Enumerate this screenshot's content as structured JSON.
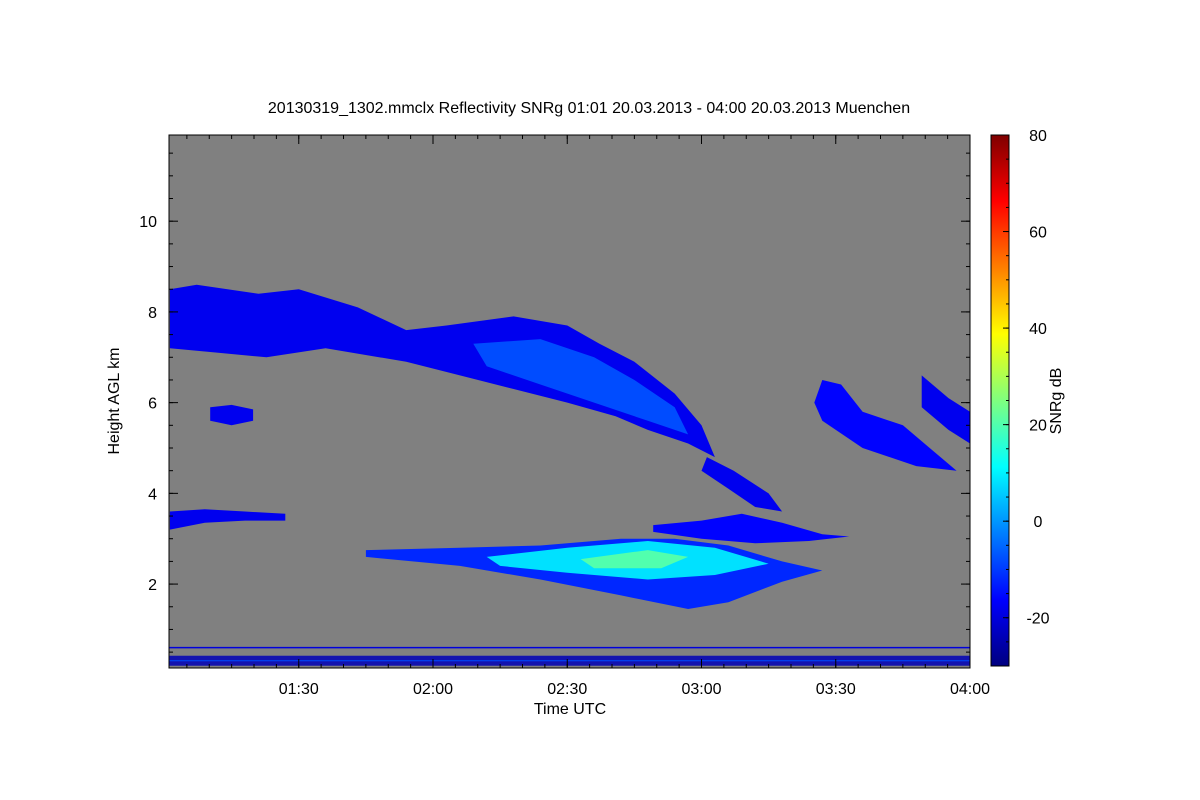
{
  "chart_data": {
    "type": "heatmap",
    "title": "20130319_1302.mmclx Reflectivity SNRg   01:01 20.03.2013 - 04:00 20.03.2013 Muenchen",
    "xlabel": "Time UTC",
    "ylabel": "Height AGL km",
    "colorbar_label": "SNRg dB",
    "x_range_hours": [
      1.0167,
      4.0
    ],
    "y_range_km": [
      0.15,
      11.9
    ],
    "x_ticks": [
      {
        "value": 1.5,
        "label": "01:30"
      },
      {
        "value": 2.0,
        "label": "02:00"
      },
      {
        "value": 2.5,
        "label": "02:30"
      },
      {
        "value": 3.0,
        "label": "03:00"
      },
      {
        "value": 3.5,
        "label": "03:30"
      },
      {
        "value": 4.0,
        "label": "04:00"
      }
    ],
    "y_ticks": [
      {
        "value": 2,
        "label": "2"
      },
      {
        "value": 4,
        "label": "4"
      },
      {
        "value": 6,
        "label": "6"
      },
      {
        "value": 8,
        "label": "8"
      },
      {
        "value": 10,
        "label": "10"
      }
    ],
    "colorbar_range": [
      -30,
      80
    ],
    "colorbar_ticks": [
      {
        "value": -20,
        "label": "-20"
      },
      {
        "value": 0,
        "label": "0"
      },
      {
        "value": 20,
        "label": "20"
      },
      {
        "value": 40,
        "label": "40"
      },
      {
        "value": 60,
        "label": "60"
      },
      {
        "value": 80,
        "label": "80"
      }
    ],
    "background_color": "#808080",
    "colormap": [
      "#00007f",
      "#0000ff",
      "#007fff",
      "#00ffff",
      "#7fff7f",
      "#ffff00",
      "#ff7f00",
      "#ff0000",
      "#7f0000"
    ],
    "echo_regions": [
      {
        "name": "upper-cirrus-band",
        "snr_db": -18,
        "points": [
          [
            1.02,
            8.5
          ],
          [
            1.12,
            8.6
          ],
          [
            1.35,
            8.4
          ],
          [
            1.5,
            8.5
          ],
          [
            1.72,
            8.1
          ],
          [
            1.9,
            7.6
          ],
          [
            2.05,
            7.7
          ],
          [
            2.3,
            7.9
          ],
          [
            2.5,
            7.7
          ],
          [
            2.62,
            7.3
          ],
          [
            2.75,
            6.9
          ],
          [
            2.9,
            6.2
          ],
          [
            3.0,
            5.5
          ],
          [
            3.05,
            4.8
          ],
          [
            2.95,
            5.1
          ],
          [
            2.8,
            5.4
          ],
          [
            2.68,
            5.7
          ],
          [
            2.5,
            6.0
          ],
          [
            2.3,
            6.3
          ],
          [
            2.1,
            6.6
          ],
          [
            1.9,
            6.9
          ],
          [
            1.6,
            7.2
          ],
          [
            1.38,
            7.0
          ],
          [
            1.2,
            7.1
          ],
          [
            1.02,
            7.2
          ]
        ]
      },
      {
        "name": "upper-cirrus-core",
        "snr_db": -8,
        "points": [
          [
            2.15,
            7.3
          ],
          [
            2.4,
            7.4
          ],
          [
            2.6,
            7.0
          ],
          [
            2.75,
            6.5
          ],
          [
            2.9,
            5.9
          ],
          [
            2.95,
            5.3
          ],
          [
            2.8,
            5.6
          ],
          [
            2.6,
            6.0
          ],
          [
            2.4,
            6.4
          ],
          [
            2.2,
            6.8
          ]
        ]
      },
      {
        "name": "small-cloud-5.8km",
        "snr_db": -18,
        "points": [
          [
            1.17,
            5.9
          ],
          [
            1.25,
            5.95
          ],
          [
            1.33,
            5.85
          ],
          [
            1.33,
            5.6
          ],
          [
            1.25,
            5.5
          ],
          [
            1.17,
            5.6
          ]
        ]
      },
      {
        "name": "band-3.5km",
        "snr_db": -18,
        "points": [
          [
            1.02,
            3.6
          ],
          [
            1.15,
            3.65
          ],
          [
            1.3,
            3.6
          ],
          [
            1.45,
            3.55
          ],
          [
            1.45,
            3.4
          ],
          [
            1.3,
            3.4
          ],
          [
            1.15,
            3.35
          ],
          [
            1.02,
            3.2
          ]
        ]
      },
      {
        "name": "mid-level-layer-3km",
        "snr_db": -16,
        "points": [
          [
            2.82,
            3.3
          ],
          [
            3.0,
            3.4
          ],
          [
            3.15,
            3.55
          ],
          [
            3.3,
            3.35
          ],
          [
            3.45,
            3.1
          ],
          [
            3.55,
            3.05
          ],
          [
            3.4,
            2.95
          ],
          [
            3.2,
            2.9
          ],
          [
            3.0,
            3.0
          ],
          [
            2.82,
            3.15
          ]
        ]
      },
      {
        "name": "descending-link",
        "snr_db": -18,
        "points": [
          [
            3.02,
            4.8
          ],
          [
            3.12,
            4.5
          ],
          [
            3.25,
            4.0
          ],
          [
            3.3,
            3.6
          ],
          [
            3.2,
            3.7
          ],
          [
            3.1,
            4.1
          ],
          [
            3.0,
            4.5
          ]
        ]
      },
      {
        "name": "cloud-3.5h",
        "snr_db": -16,
        "points": [
          [
            3.45,
            6.5
          ],
          [
            3.52,
            6.4
          ],
          [
            3.6,
            5.8
          ],
          [
            3.75,
            5.5
          ],
          [
            3.85,
            5.0
          ],
          [
            3.95,
            4.5
          ],
          [
            3.8,
            4.6
          ],
          [
            3.6,
            5.0
          ],
          [
            3.45,
            5.6
          ],
          [
            3.42,
            6.0
          ]
        ]
      },
      {
        "name": "cloud-right-edge",
        "snr_db": -18,
        "points": [
          [
            3.82,
            6.6
          ],
          [
            3.92,
            6.1
          ],
          [
            4.0,
            5.8
          ],
          [
            4.0,
            5.1
          ],
          [
            3.92,
            5.4
          ],
          [
            3.82,
            5.9
          ]
        ]
      },
      {
        "name": "precip-layer-2.5km",
        "snr_db": -12,
        "points": [
          [
            1.75,
            2.75
          ],
          [
            2.1,
            2.8
          ],
          [
            2.4,
            2.85
          ],
          [
            2.7,
            3.0
          ],
          [
            2.9,
            3.0
          ],
          [
            3.1,
            2.85
          ],
          [
            3.3,
            2.5
          ],
          [
            3.45,
            2.3
          ],
          [
            3.3,
            2.05
          ],
          [
            3.1,
            1.6
          ],
          [
            2.95,
            1.45
          ],
          [
            2.7,
            1.75
          ],
          [
            2.4,
            2.1
          ],
          [
            2.1,
            2.4
          ],
          [
            1.75,
            2.6
          ]
        ]
      },
      {
        "name": "precip-layer-core",
        "snr_db": 8,
        "points": [
          [
            2.2,
            2.6
          ],
          [
            2.5,
            2.8
          ],
          [
            2.8,
            2.95
          ],
          [
            3.05,
            2.8
          ],
          [
            3.25,
            2.45
          ],
          [
            3.05,
            2.2
          ],
          [
            2.8,
            2.1
          ],
          [
            2.5,
            2.25
          ],
          [
            2.25,
            2.4
          ]
        ]
      },
      {
        "name": "precip-layer-peak",
        "snr_db": 20,
        "points": [
          [
            2.55,
            2.55
          ],
          [
            2.8,
            2.75
          ],
          [
            2.95,
            2.6
          ],
          [
            2.85,
            2.35
          ],
          [
            2.6,
            2.35
          ]
        ]
      },
      {
        "name": "surface-clutter",
        "snr_db": -20,
        "points": [
          [
            1.0167,
            0.6
          ],
          [
            4.0,
            0.6
          ],
          [
            4.0,
            0.2
          ],
          [
            1.0167,
            0.2
          ]
        ]
      }
    ]
  }
}
